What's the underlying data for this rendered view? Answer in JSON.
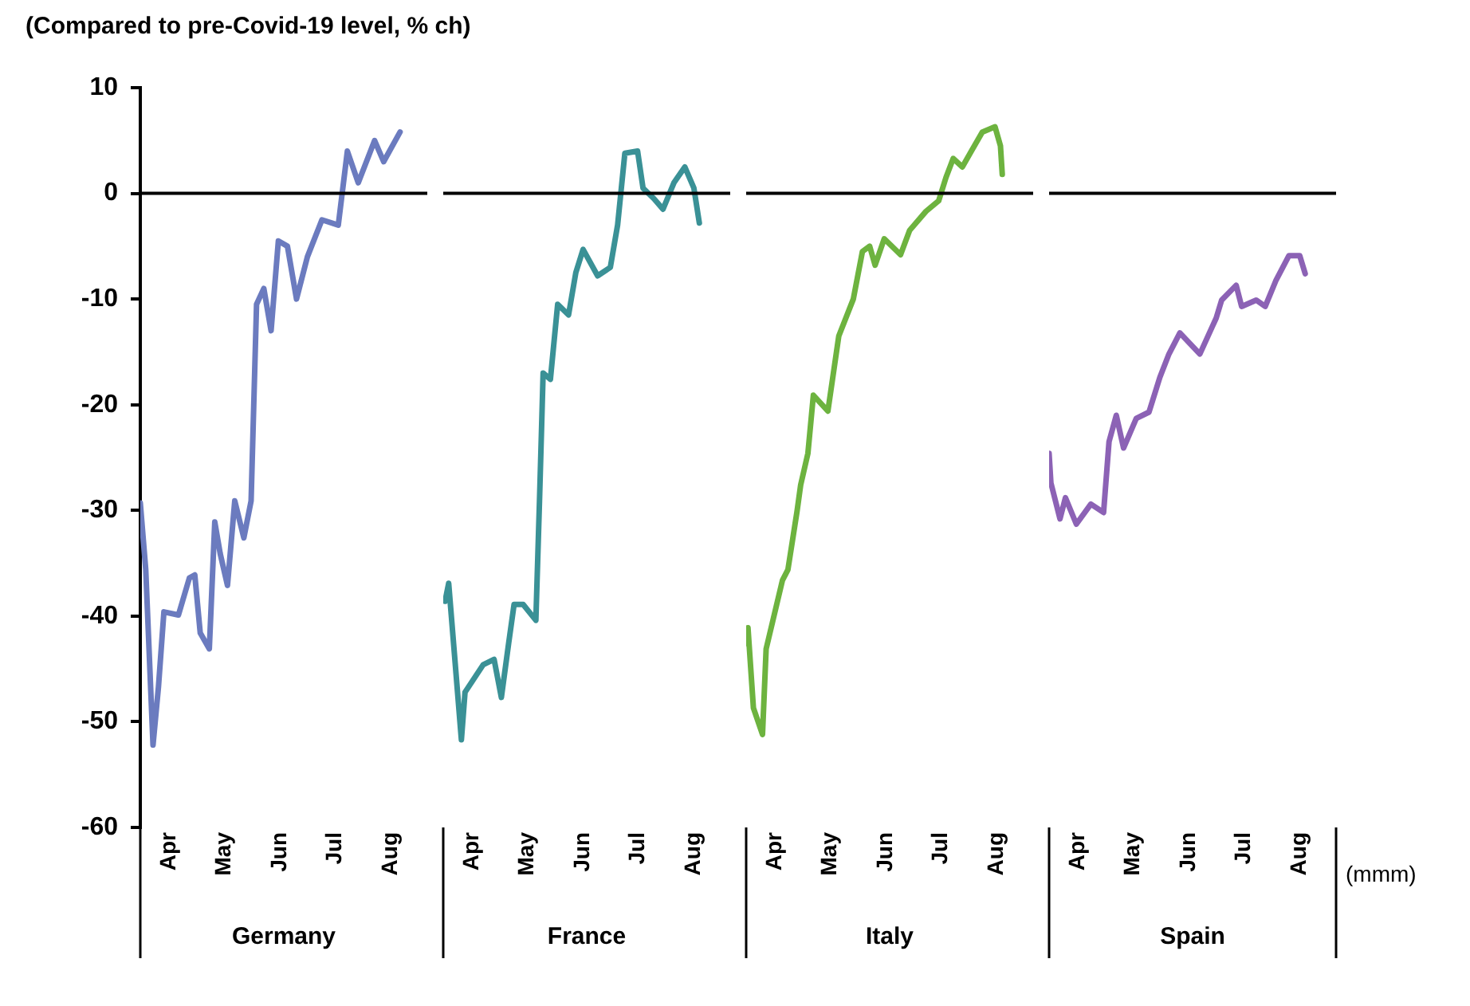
{
  "chart_data": [
    {
      "type": "line",
      "title": "(Compared to pre-Covid-19 level, % ch)",
      "xlabel": "Germany",
      "xlim": [
        "--03-16",
        "--08-21"
      ],
      "xticks": [
        {
          "value": "--04-01",
          "label": "Apr"
        },
        {
          "value": "--05-01",
          "label": "May"
        },
        {
          "value": "--06-01",
          "label": "Jun"
        },
        {
          "value": "--07-01",
          "label": "Jul"
        },
        {
          "value": "--08-01",
          "label": "Aug"
        }
      ],
      "ylim": [
        -60,
        10
      ],
      "yticks": [
        -60,
        -50,
        -40,
        -30,
        -20,
        -10,
        0,
        10
      ],
      "grid": false,
      "legend": false,
      "ref_lines": [
        {
          "axis": "y",
          "value": 0,
          "color": "#000000"
        }
      ],
      "series": [
        {
          "color": "#6b7bbf",
          "x": [
            "--03-16",
            "--03-19",
            "--03-23",
            "--03-26",
            "--03-29",
            "--04-06",
            "--04-12",
            "--04-15",
            "--04-18",
            "--04-23",
            "--04-26",
            "--04-29",
            "--05-03",
            "--05-07",
            "--05-12",
            "--05-16",
            "--05-19",
            "--05-23",
            "--05-27",
            "--05-31",
            "--06-05",
            "--06-10",
            "--06-16",
            "--06-24",
            "--07-03",
            "--07-08",
            "--07-14",
            "--07-23",
            "--07-28",
            "--08-06"
          ],
          "values": [
            -29.3,
            -35.6,
            -52.2,
            -46.7,
            -39.6,
            -39.9,
            -36.4,
            -36.1,
            -41.6,
            -43.1,
            -31.1,
            -34.1,
            -37.1,
            -29.1,
            -32.6,
            -29.1,
            -10.5,
            -9.0,
            -13.0,
            -4.5,
            -5.0,
            -10.0,
            -6.0,
            -2.5,
            -3.0,
            4.0,
            1.0,
            5.0,
            3.0,
            5.8
          ]
        }
      ]
    },
    {
      "type": "line",
      "xlabel": "France",
      "xlim": [
        "--03-16",
        "--08-21"
      ],
      "xticks": [
        {
          "value": "--04-01",
          "label": "Apr"
        },
        {
          "value": "--05-01",
          "label": "May"
        },
        {
          "value": "--06-01",
          "label": "Jun"
        },
        {
          "value": "--07-01",
          "label": "Jul"
        },
        {
          "value": "--08-01",
          "label": "Aug"
        }
      ],
      "ylim": [
        -60,
        10
      ],
      "yticks": [
        -60,
        -50,
        -40,
        -30,
        -20,
        -10,
        0,
        10
      ],
      "tick_labels": "x",
      "grid": false,
      "legend": false,
      "ref_lines": [
        {
          "axis": "y",
          "value": 0,
          "color": "#000000"
        }
      ],
      "series": [
        {
          "color": "#3a9196",
          "x": [
            "--03-17",
            "--03-19",
            "--03-26",
            "--03-28",
            "--04-07",
            "--04-13",
            "--04-17",
            "--04-21",
            "--04-24",
            "--04-29",
            "--05-06",
            "--05-08",
            "--05-10",
            "--05-14",
            "--05-18",
            "--05-24",
            "--05-28",
            "--06-01",
            "--06-09",
            "--06-16",
            "--06-20",
            "--06-24",
            "--07-01",
            "--07-04",
            "--07-10",
            "--07-15",
            "--07-21",
            "--07-27",
            "--08-01",
            "--08-04"
          ],
          "values": [
            -38.6,
            -36.9,
            -51.7,
            -47.2,
            -44.6,
            -44.1,
            -47.7,
            -42.6,
            -38.9,
            -38.9,
            -40.4,
            -29.1,
            -17.0,
            -17.6,
            -10.5,
            -11.5,
            -7.5,
            -5.3,
            -7.8,
            -7.0,
            -3.0,
            3.8,
            4.0,
            0.5,
            -0.5,
            -1.5,
            1.0,
            2.5,
            0.5,
            -2.8
          ]
        }
      ]
    },
    {
      "type": "line",
      "xlabel": "Italy",
      "xlim": [
        "--03-16",
        "--08-21"
      ],
      "xticks": [
        {
          "value": "--04-01",
          "label": "Apr"
        },
        {
          "value": "--05-01",
          "label": "May"
        },
        {
          "value": "--06-01",
          "label": "Jun"
        },
        {
          "value": "--07-01",
          "label": "Jul"
        },
        {
          "value": "--08-01",
          "label": "Aug"
        }
      ],
      "ylim": [
        -60,
        10
      ],
      "yticks": [
        -60,
        -50,
        -40,
        -30,
        -20,
        -10,
        0,
        10
      ],
      "tick_labels": "x",
      "grid": false,
      "legend": false,
      "ref_lines": [
        {
          "axis": "y",
          "value": 0,
          "color": "#000000"
        }
      ],
      "series": [
        {
          "color": "#6db33f",
          "x": [
            "--03-16",
            "--03-17",
            "--03-20",
            "--03-25",
            "--03-27",
            "--04-05",
            "--04-08",
            "--04-13",
            "--04-15",
            "--04-19",
            "--04-22",
            "--04-30",
            "--05-06",
            "--05-14",
            "--05-19",
            "--05-23",
            "--05-26",
            "--05-31",
            "--06-09",
            "--06-14",
            "--06-23",
            "--06-30",
            "--07-04",
            "--07-08",
            "--07-13",
            "--07-18",
            "--07-24",
            "--07-31",
            "--08-03",
            "--08-04"
          ],
          "values": [
            -42.6,
            -41.1,
            -48.7,
            -51.2,
            -43.1,
            -36.6,
            -35.6,
            -30.1,
            -27.6,
            -24.6,
            -19.1,
            -20.6,
            -13.5,
            -10.0,
            -5.5,
            -5.0,
            -6.8,
            -4.3,
            -5.8,
            -3.5,
            -1.7,
            -0.7,
            1.5,
            3.3,
            2.5,
            4.0,
            5.8,
            6.3,
            4.5,
            1.8
          ]
        }
      ]
    },
    {
      "type": "line",
      "xlabel": "Spain",
      "xlim": [
        "--03-16",
        "--08-21"
      ],
      "xticks": [
        {
          "value": "--04-01",
          "label": "Apr"
        },
        {
          "value": "--05-01",
          "label": "May"
        },
        {
          "value": "--06-01",
          "label": "Jun"
        },
        {
          "value": "--07-01",
          "label": "Jul"
        },
        {
          "value": "--08-01",
          "label": "Aug"
        }
      ],
      "ylim": [
        -60,
        10
      ],
      "yticks": [
        -60,
        -50,
        -40,
        -30,
        -20,
        -10,
        0,
        10
      ],
      "tick_labels": "x",
      "grid": false,
      "legend": false,
      "ref_lines": [
        {
          "axis": "y",
          "value": 0,
          "color": "#000000"
        }
      ],
      "annotations": [
        "(mmm)"
      ],
      "series": [
        {
          "color": "#8c62b5",
          "x": [
            "--03-16",
            "--03-17",
            "--03-22",
            "--03-25",
            "--03-31",
            "--04-08",
            "--04-15",
            "--04-18",
            "--04-22",
            "--04-26",
            "--05-03",
            "--05-10",
            "--05-16",
            "--05-21",
            "--05-27",
            "--06-07",
            "--06-16",
            "--06-19",
            "--06-27",
            "--06-30",
            "--07-08",
            "--07-13",
            "--07-19",
            "--07-26",
            "--08-01",
            "--08-04"
          ],
          "values": [
            -24.6,
            -27.4,
            -30.8,
            -28.8,
            -31.3,
            -29.4,
            -30.2,
            -23.5,
            -21.0,
            -24.1,
            -21.3,
            -20.7,
            -17.4,
            -15.2,
            -13.2,
            -15.2,
            -11.8,
            -10.1,
            -8.7,
            -10.7,
            -10.1,
            -10.7,
            -8.2,
            -5.9,
            -5.9,
            -7.6
          ]
        }
      ]
    }
  ]
}
